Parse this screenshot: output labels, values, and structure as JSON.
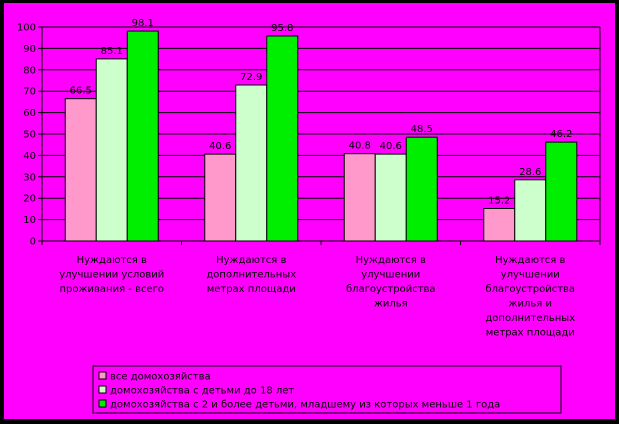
{
  "chart_data": {
    "type": "bar",
    "title": "",
    "xlabel": "",
    "ylabel": "",
    "ylim": [
      0,
      100
    ],
    "y_ticks": [
      "0",
      "10",
      "20",
      "30",
      "40",
      "50",
      "60",
      "70",
      "80",
      "90",
      "100"
    ],
    "grid": true,
    "legend_position": "bottom",
    "categories": [
      [
        "Нуждаются в",
        "улучшении условий",
        "проживания - всего"
      ],
      [
        "Нуждаются в",
        "дополнительных",
        "метрах площади"
      ],
      [
        "Нуждаются в",
        "улучшении",
        "благоустройства",
        "жилья"
      ],
      [
        "Нуждаются в",
        "улучшении",
        "благоустройства",
        "жилья и",
        "дополнительных",
        "метрах площади"
      ]
    ],
    "series": [
      {
        "name": "все домохозяйства",
        "color": "#FF99CC",
        "values": [
          66.5,
          40.6,
          40.8,
          15.2
        ],
        "labels": [
          "66.5",
          "40.6",
          "40.8",
          "15.2"
        ]
      },
      {
        "name": "домохозяйства с детьми до 18 лет",
        "color": "#CCFFCC",
        "values": [
          85.1,
          72.9,
          40.6,
          28.6
        ],
        "labels": [
          "85.1",
          "72.9",
          "40.6",
          "28.6"
        ]
      },
      {
        "name": "домохозяйства с 2 и более детьми, младшему из которых меньше 1 года",
        "color": "#00EE00",
        "values": [
          98.1,
          95.8,
          48.5,
          46.2
        ],
        "labels": [
          "98.1",
          "95.8",
          "48.5",
          "46.2"
        ]
      }
    ]
  },
  "colors": {
    "outer_background": "#000000",
    "frame": "#FF00FF",
    "plot_background": "#FF00FF",
    "gridline": "#000000",
    "text": "#000000",
    "legend_background": "#FF00FF"
  }
}
